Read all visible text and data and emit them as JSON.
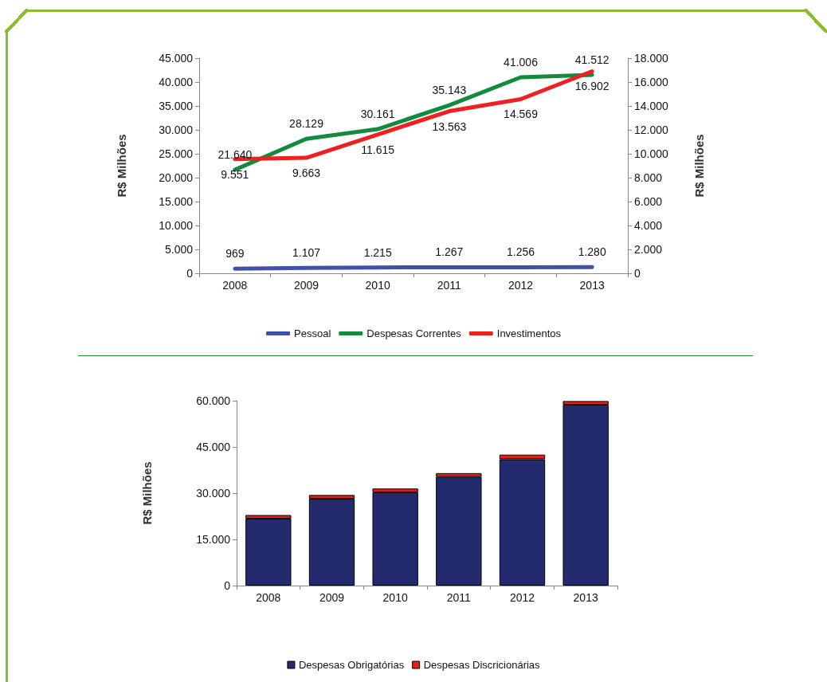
{
  "chart_data": [
    {
      "type": "line",
      "categories": [
        "2008",
        "2009",
        "2010",
        "2011",
        "2012",
        "2013"
      ],
      "ylabel": "R$ Milhões",
      "y2label": "R$ Milhões",
      "legend": "bottom",
      "grid": false,
      "marker": "none",
      "line_style": "solid",
      "ylim": [
        0,
        45000
      ],
      "yticks": [
        {
          "value": 0,
          "label": "0"
        },
        {
          "value": 5000,
          "label": "5.000"
        },
        {
          "value": 10000,
          "label": "10.000"
        },
        {
          "value": 15000,
          "label": "15.000"
        },
        {
          "value": 20000,
          "label": "20.000"
        },
        {
          "value": 25000,
          "label": "25.000"
        },
        {
          "value": 30000,
          "label": "30.000"
        },
        {
          "value": 35000,
          "label": "35.000"
        },
        {
          "value": 40000,
          "label": "40.000"
        },
        {
          "value": 45000,
          "label": "45.000"
        }
      ],
      "y2lim": [
        0,
        18000
      ],
      "y2ticks": [
        {
          "value": 0,
          "label": "0"
        },
        {
          "value": 2000,
          "label": "2.000"
        },
        {
          "value": 4000,
          "label": "4.000"
        },
        {
          "value": 6000,
          "label": "6.000"
        },
        {
          "value": 8000,
          "label": "8.000"
        },
        {
          "value": 10000,
          "label": "10.000"
        },
        {
          "value": 12000,
          "label": "12.000"
        },
        {
          "value": 14000,
          "label": "14.000"
        },
        {
          "value": 16000,
          "label": "16.000"
        },
        {
          "value": 18000,
          "label": "18.000"
        }
      ],
      "series": [
        {
          "name": "Pessoal",
          "color": "#3f51a8",
          "values": [
            969,
            1107,
            1215,
            1267,
            1256,
            1280
          ],
          "value_labels": [
            "969",
            "1.107",
            "1.215",
            "1.267",
            "1.256",
            "1.280"
          ]
        },
        {
          "name": "Despesas Correntes",
          "color": "#138a3e",
          "values": [
            21640,
            28129,
            30161,
            35143,
            41006,
            41512
          ],
          "value_labels": [
            "21.640",
            "28.129",
            "30.161",
            "35.143",
            "41.006",
            "41.512"
          ]
        },
        {
          "name": "Investimentos",
          "color": "#ed2024",
          "axis": "y2",
          "values": [
            9551,
            9663,
            11615,
            13563,
            14569,
            16902
          ],
          "value_labels": [
            "9.551",
            "9.663",
            "11.615",
            "13.563",
            "14.569",
            "16.902"
          ]
        }
      ]
    },
    {
      "type": "bar",
      "stacked": true,
      "categories": [
        "2008",
        "2009",
        "2010",
        "2011",
        "2012",
        "2013"
      ],
      "ylabel": "R$ Milhões",
      "legend": "bottom",
      "grid": false,
      "ylim": [
        0,
        60000
      ],
      "yticks": [
        {
          "value": 0,
          "label": "0"
        },
        {
          "value": 15000,
          "label": "15.000"
        },
        {
          "value": 30000,
          "label": "30.000"
        },
        {
          "value": 45000,
          "label": "45.000"
        },
        {
          "value": 60000,
          "label": "60.000"
        }
      ],
      "series": [
        {
          "name": "Despesas Obrigatórias",
          "color": "#232b6e",
          "values": [
            21700,
            28200,
            30300,
            35300,
            41000,
            58700
          ]
        },
        {
          "name": "Despesas Discricionárias",
          "color": "#e32219",
          "values": [
            1200,
            1200,
            1200,
            1200,
            1500,
            1200
          ]
        }
      ]
    }
  ]
}
